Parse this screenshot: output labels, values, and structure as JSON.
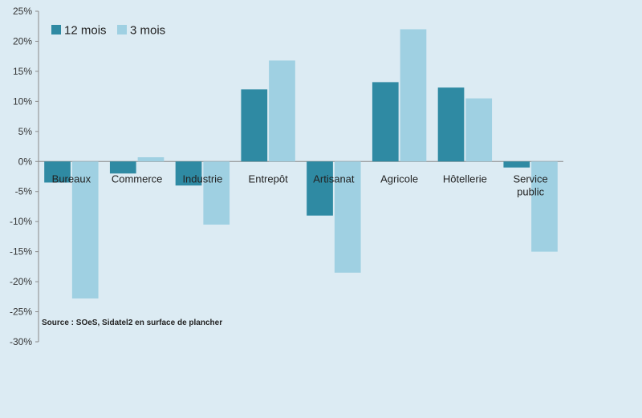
{
  "chart_data": {
    "type": "bar",
    "categories": [
      "Bureaux",
      "Commerce",
      "Industrie",
      "Entrepôt",
      "Artisanat",
      "Agricole",
      "Hôtellerie",
      "Service public"
    ],
    "category_lines": [
      [
        "Bureaux"
      ],
      [
        "Commerce"
      ],
      [
        "Industrie"
      ],
      [
        "Entrepôt"
      ],
      [
        "Artisanat"
      ],
      [
        "Agricole"
      ],
      [
        "Hôtellerie"
      ],
      [
        "Service",
        "public"
      ]
    ],
    "series": [
      {
        "name": "12 mois",
        "color": "#2f8aa3",
        "values": [
          -3.5,
          -2.0,
          -4.0,
          12.0,
          -9.0,
          13.2,
          12.3,
          -1.0
        ]
      },
      {
        "name": "3 mois",
        "color": "#9fd0e2",
        "values": [
          -22.8,
          0.7,
          -10.5,
          16.8,
          -18.5,
          22.0,
          10.5,
          -15.0
        ]
      }
    ],
    "ylim": [
      -30,
      25
    ],
    "yticks": [
      -30,
      -25,
      -20,
      -15,
      -10,
      -5,
      0,
      5,
      10,
      15,
      20,
      25
    ],
    "tick_suffix": "%",
    "grid": false,
    "legend_position": "top-left",
    "source": "Source : SOeS, Sidatel2 en surface de plancher"
  }
}
